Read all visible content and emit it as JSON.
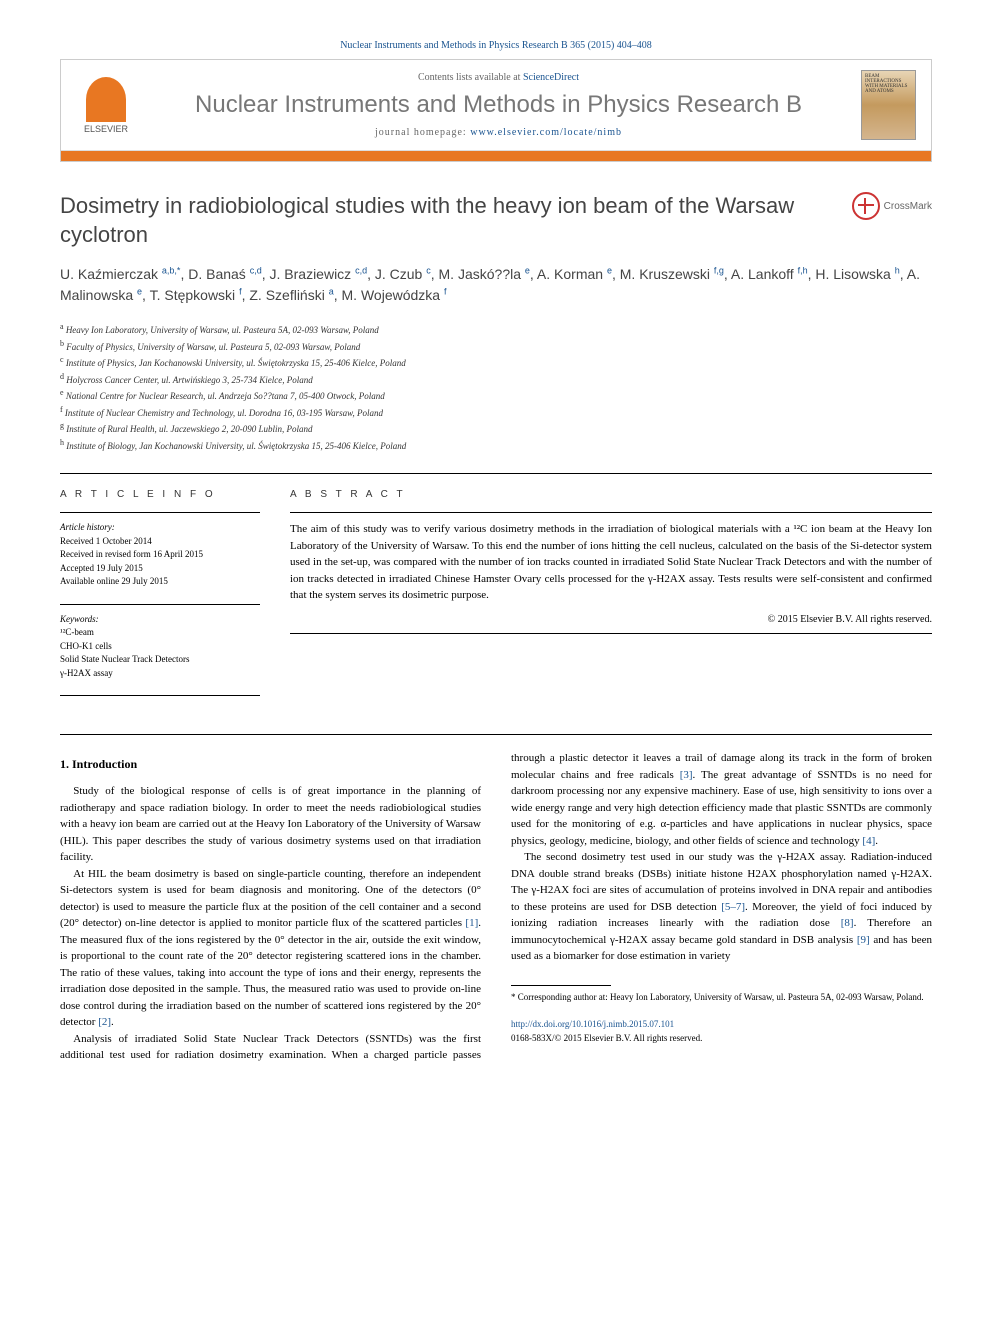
{
  "header": {
    "citation_prefix": "Nuclear Instruments and Methods in Physics Research B 365 (2015) 404–408",
    "contents_text": "Contents lists available at",
    "contents_link": "ScienceDirect",
    "journal_name": "Nuclear Instruments and Methods in Physics Research B",
    "homepage_label": "journal homepage:",
    "homepage_url": "www.elsevier.com/locate/nimb",
    "publisher": "ELSEVIER",
    "cover_text": "BEAM INTERACTIONS WITH MATERIALS AND ATOMS"
  },
  "title": "Dosimetry in radiobiological studies with the heavy ion beam of the Warsaw cyclotron",
  "crossmark": "CrossMark",
  "authors": "U. Kaźmierczak <sup>a,b,*</sup>, D. Banaś <sup>c,d</sup>, J. Braziewicz <sup>c,d</sup>, J. Czub <sup>c</sup>, M. Jaskó??la <sup>e</sup>, A. Korman <sup>e</sup>, M. Kruszewski <sup>f,g</sup>, A. Lankoff <sup>f,h</sup>, H. Lisowska <sup>h</sup>, A. Malinowska <sup>e</sup>, T. Stępkowski <sup>f</sup>, Z. Szefliński <sup>a</sup>, M. Wojewódzka <sup>f</sup>",
  "affiliations": [
    {
      "sup": "a",
      "text": "Heavy Ion Laboratory, University of Warsaw, ul. Pasteura 5A, 02-093 Warsaw, Poland"
    },
    {
      "sup": "b",
      "text": "Faculty of Physics, University of Warsaw, ul. Pasteura 5, 02-093 Warsaw, Poland"
    },
    {
      "sup": "c",
      "text": "Institute of Physics, Jan Kochanowski University, ul. Świętokrzyska 15, 25-406 Kielce, Poland"
    },
    {
      "sup": "d",
      "text": "Holycross Cancer Center, ul. Artwińskiego 3, 25-734 Kielce, Poland"
    },
    {
      "sup": "e",
      "text": "National Centre for Nuclear Research, ul. Andrzeja So??tana 7, 05-400 Otwock, Poland"
    },
    {
      "sup": "f",
      "text": "Institute of Nuclear Chemistry and Technology, ul. Dorodna 16, 03-195 Warsaw, Poland"
    },
    {
      "sup": "g",
      "text": "Institute of Rural Health, ul. Jaczewskiego 2, 20-090 Lublin, Poland"
    },
    {
      "sup": "h",
      "text": "Institute of Biology, Jan Kochanowski University, ul. Świętokrzyska 15, 25-406 Kielce, Poland"
    }
  ],
  "article_info": {
    "heading": "A R T I C L E   I N F O",
    "history_label": "Article history:",
    "history": [
      "Received 1 October 2014",
      "Received in revised form 16 April 2015",
      "Accepted 19 July 2015",
      "Available online 29 July 2015"
    ],
    "keywords_label": "Keywords:",
    "keywords": [
      "¹²C-beam",
      "CHO-K1 cells",
      "Solid State Nuclear Track Detectors",
      "γ-H2AX assay"
    ]
  },
  "abstract": {
    "heading": "A B S T R A C T",
    "text": "The aim of this study was to verify various dosimetry methods in the irradiation of biological materials with a ¹²C ion beam at the Heavy Ion Laboratory of the University of Warsaw. To this end the number of ions hitting the cell nucleus, calculated on the basis of the Si-detector system used in the set-up, was compared with the number of ion tracks counted in irradiated Solid State Nuclear Track Detectors and with the number of ion tracks detected in irradiated Chinese Hamster Ovary cells processed for the γ-H2AX assay. Tests results were self-consistent and confirmed that the system serves its dosimetric purpose.",
    "copyright": "© 2015 Elsevier B.V. All rights reserved."
  },
  "body": {
    "section1_heading": "1. Introduction",
    "p1": "Study of the biological response of cells is of great importance in the planning of radiotherapy and space radiation biology. In order to meet the needs radiobiological studies with a heavy ion beam are carried out at the Heavy Ion Laboratory of the University of Warsaw (HIL). This paper describes the study of various dosimetry systems used on that irradiation facility.",
    "p2a": "At HIL the beam dosimetry is based on single-particle counting, therefore an independent Si-detectors system is used for beam diagnosis and monitoring. One of the detectors (0° detector) is used to measure the particle flux at the position of the cell container and a second (20° detector) on-line detector is applied to monitor particle flux of the scattered particles ",
    "ref1": "[1]",
    "p2b": ". The measured flux of the ions registered by the 0° detector in the air, outside the exit window, is proportional to the count rate of the 20° detector registering scattered ions in the chamber. The ratio of these values, taking into account the type of ions and their energy, represents the irradiation dose deposited in the sample. Thus, the measured ratio was used to provide on-line dose control during the irradiation based on the number of scattered ions registered by the 20° detector ",
    "ref2": "[2]",
    "p2c": ".",
    "p3a": "Analysis of irradiated Solid State Nuclear Track Detectors (SSNTDs) was the first additional test used for radiation dosimetry examination. When a charged particle passes through a plastic detector it leaves a trail of damage along its track in the form of broken molecular chains and free radicals ",
    "ref3": "[3]",
    "p3b": ". The great advantage of SSNTDs is no need for darkroom processing nor any expensive machinery. Ease of use, high sensitivity to ions over a wide energy range and very high detection efficiency made that plastic SSNTDs are commonly used for the monitoring of e.g. α-particles and have applications in nuclear physics, space physics, geology, medicine, biology, and other fields of science and technology ",
    "ref4": "[4]",
    "p3c": ".",
    "p4a": "The second dosimetry test used in our study was the γ-H2AX assay. Radiation-induced DNA double strand breaks (DSBs) initiate histone H2AX phosphorylation named γ-H2AX. The γ-H2AX foci are sites of accumulation of proteins involved in DNA repair and antibodies to these proteins are used for DSB detection ",
    "ref5_7": "[5–7]",
    "p4b": ". Moreover, the yield of foci induced by ionizing radiation increases linearly with the radiation dose ",
    "ref8": "[8]",
    "p4c": ". Therefore an immunocytochemical γ-H2AX assay became gold standard in DSB analysis ",
    "ref9": "[9]",
    "p4d": " and has been used as a biomarker for dose estimation in variety"
  },
  "footnote": {
    "marker": "*",
    "text": "Corresponding author at: Heavy Ion Laboratory, University of Warsaw, ul. Pasteura 5A, 02-093 Warsaw, Poland."
  },
  "footer": {
    "doi": "http://dx.doi.org/10.1016/j.nimb.2015.07.101",
    "issn_copyright": "0168-583X/© 2015 Elsevier B.V. All rights reserved."
  },
  "colors": {
    "link": "#1a5490",
    "orange": "#e87722",
    "gray_text": "#666",
    "dark_gray": "#444"
  }
}
